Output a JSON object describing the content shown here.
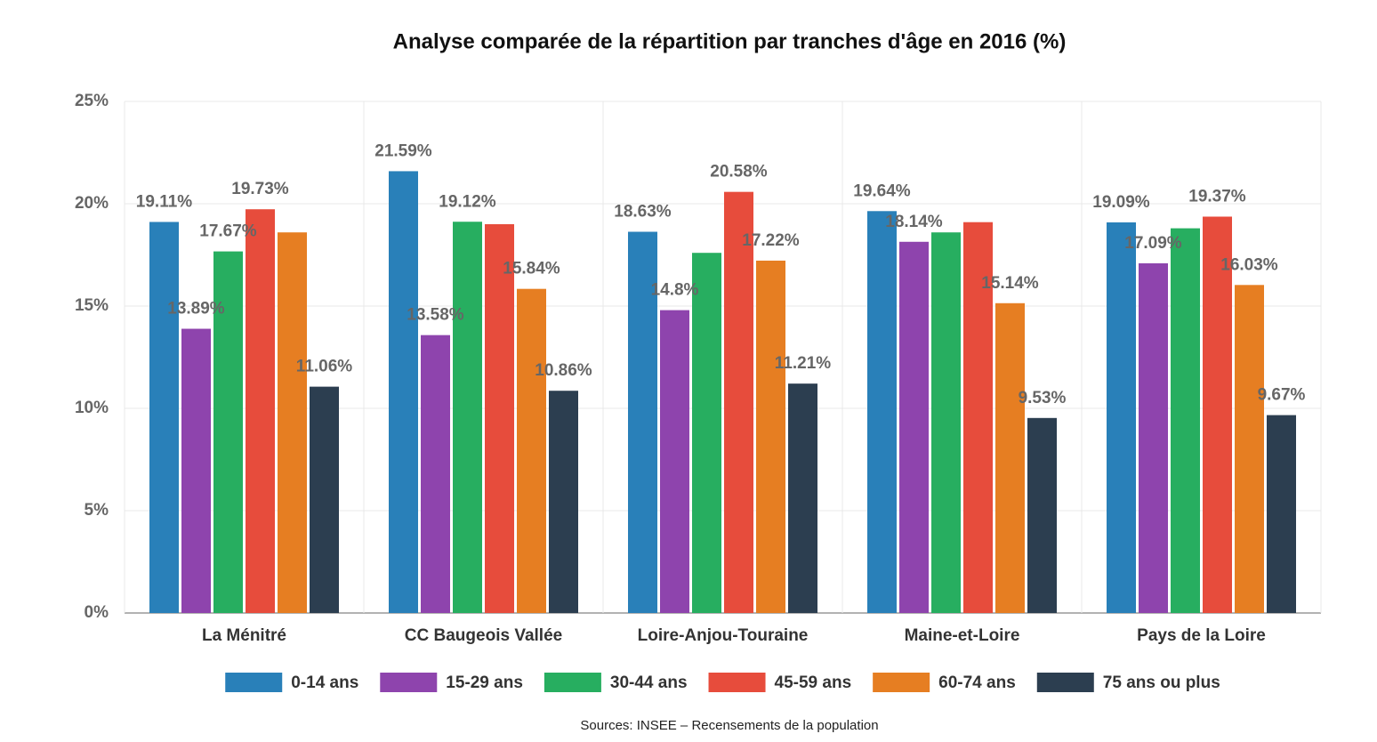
{
  "chart_data": {
    "type": "bar",
    "title": "Analyse comparée de la répartition par tranches d'âge en 2016 (%)",
    "source": "Sources: INSEE – Recensements de la population",
    "categories": [
      "La Ménitré",
      "CC Baugeois Vallée",
      "Loire-Anjou-Touraine",
      "Maine-et-Loire",
      "Pays de la Loire"
    ],
    "series": [
      {
        "name": "0-14 ans",
        "color": "#2980b9",
        "values": [
          19.11,
          21.59,
          18.63,
          19.64,
          19.09
        ],
        "value_labels": [
          "19.11%",
          "21.59%",
          "18.63%",
          "19.64%",
          "19.09%"
        ]
      },
      {
        "name": "15-29 ans",
        "color": "#8e44ad",
        "values": [
          13.89,
          13.58,
          14.8,
          18.14,
          17.09
        ],
        "value_labels": [
          "13.89%",
          "13.58%",
          "14.8%",
          "18.14%",
          "17.09%"
        ]
      },
      {
        "name": "30-44 ans",
        "color": "#27ae60",
        "values": [
          17.67,
          19.12,
          17.6,
          18.6,
          18.8
        ],
        "value_labels": [
          "17.67%",
          "19.12%",
          null,
          null,
          null
        ]
      },
      {
        "name": "45-59 ans",
        "color": "#e74c3c",
        "values": [
          19.73,
          19.0,
          20.58,
          19.1,
          19.37
        ],
        "value_labels": [
          "19.73%",
          null,
          "20.58%",
          null,
          "19.37%"
        ]
      },
      {
        "name": "60-74 ans",
        "color": "#e67e22",
        "values": [
          18.6,
          15.84,
          17.22,
          15.14,
          16.03
        ],
        "value_labels": [
          null,
          "15.84%",
          "17.22%",
          "15.14%",
          "16.03%"
        ]
      },
      {
        "name": "75 ans ou plus",
        "color": "#2c3e50",
        "values": [
          11.06,
          10.86,
          11.21,
          9.53,
          9.67
        ],
        "value_labels": [
          "11.06%",
          "10.86%",
          "11.21%",
          "9.53%",
          "9.67%"
        ]
      }
    ],
    "ylim": [
      0,
      25
    ],
    "yticks": [
      {
        "value": 0,
        "label": "0%"
      },
      {
        "value": 5,
        "label": "5%"
      },
      {
        "value": 10,
        "label": "10%"
      },
      {
        "value": 15,
        "label": "15%"
      },
      {
        "value": 20,
        "label": "20%"
      },
      {
        "value": 25,
        "label": "25%"
      }
    ],
    "grid": true,
    "legend": "bottom"
  }
}
